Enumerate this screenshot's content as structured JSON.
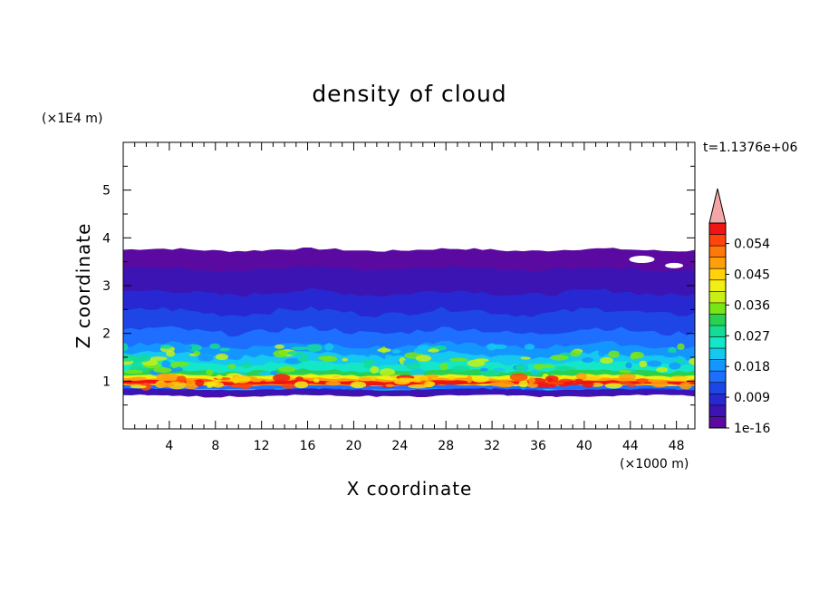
{
  "chart_data": {
    "type": "heatmap",
    "title": "density of cloud",
    "xlabel": "X coordinate",
    "ylabel": "Z coordinate",
    "x_unit": "(×1000 m)",
    "y_unit": "(×1E4 m)",
    "time_label": "t=1.1376e+06",
    "xlim": [
      0,
      49.6
    ],
    "ylim": [
      0,
      6
    ],
    "x_ticks": [
      4,
      8,
      12,
      16,
      20,
      24,
      28,
      32,
      36,
      40,
      44,
      48
    ],
    "y_ticks": [
      1,
      2,
      3,
      4,
      5
    ],
    "colorbar": {
      "labels": [
        "0.054",
        "0.045",
        "0.036",
        "0.027",
        "0.018",
        "0.009",
        "1e-16"
      ],
      "label_values": [
        0.054,
        0.045,
        0.036,
        0.027,
        0.018,
        0.009,
        1e-16
      ],
      "colors": [
        "#5a0aa0",
        "#3c14b4",
        "#2828d2",
        "#1e46e6",
        "#1e6eff",
        "#1496ff",
        "#14c8f0",
        "#14e6c8",
        "#14dc96",
        "#28d250",
        "#78e614",
        "#c8f014",
        "#f0f014",
        "#ffd20a",
        "#ffa00a",
        "#ff780a",
        "#ff460a",
        "#f01414"
      ],
      "overflow_color": "#f4a6a6"
    },
    "field_description_by_z": [
      {
        "z": [
          0.0,
          0.7
        ],
        "value": null
      },
      {
        "z": [
          0.7,
          0.8
        ],
        "value": 0.004
      },
      {
        "z": [
          0.8,
          1.15
        ],
        "value": 0.052
      },
      {
        "z": [
          1.15,
          1.6
        ],
        "value": 0.024
      },
      {
        "z": [
          1.6,
          2.2
        ],
        "value": 0.012
      },
      {
        "z": [
          2.2,
          3.5
        ],
        "value": 0.004
      },
      {
        "z": [
          3.5,
          3.8
        ],
        "value": 0.001
      },
      {
        "z": [
          3.8,
          6.0
        ],
        "value": null
      }
    ]
  }
}
